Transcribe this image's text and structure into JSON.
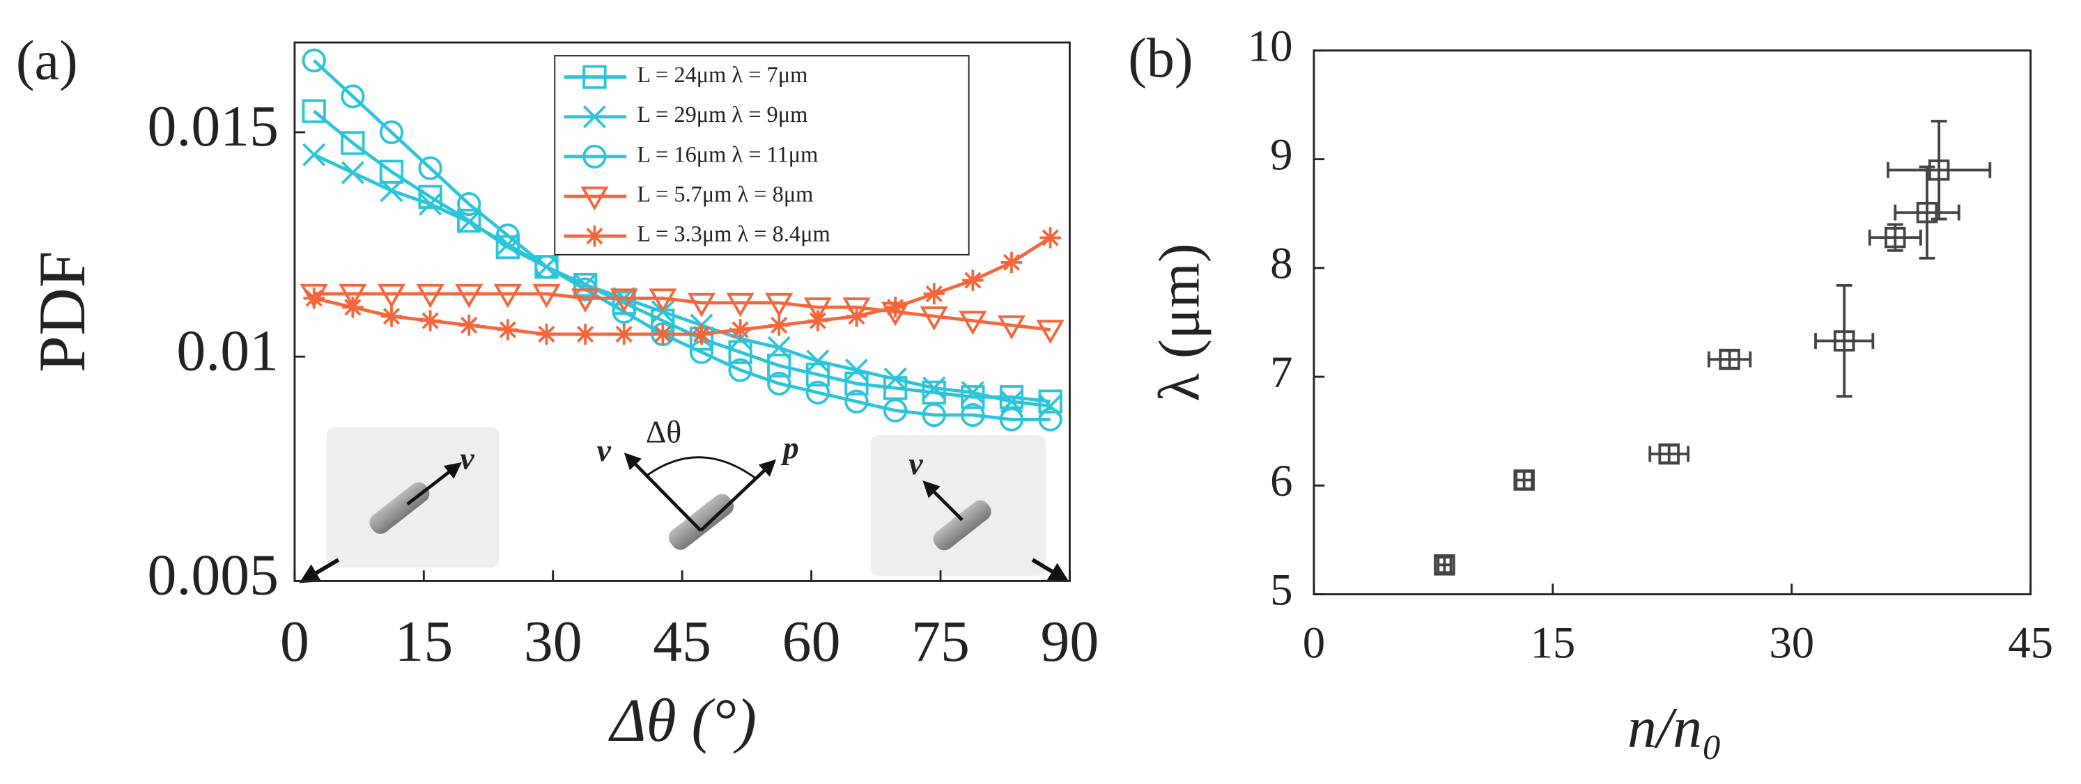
{
  "chart_data": [
    {
      "type": "line",
      "panel": "(a)",
      "ylabel": "PDF",
      "xlabel": "Δθ (°)",
      "xlim": [
        0,
        90
      ],
      "xticks": [
        0,
        15,
        30,
        45,
        60,
        75,
        90
      ],
      "ylim": [
        0.005,
        0.017
      ],
      "yticks": [
        0.005,
        0.01,
        0.015
      ],
      "x": [
        2.25,
        6.75,
        11.25,
        15.75,
        20.25,
        24.75,
        29.25,
        33.75,
        38.25,
        42.75,
        47.25,
        51.75,
        56.25,
        60.75,
        65.25,
        69.75,
        74.25,
        78.75,
        83.25,
        87.75
      ],
      "annotations": [
        "v",
        "Δθ",
        "v",
        "p",
        "v"
      ],
      "series": [
        {
          "name": "L = 24μm   λ = 7μm",
          "color": "#2bc4d9",
          "marker": "square",
          "values": [
            0.01547,
            0.01476,
            0.01412,
            0.01356,
            0.01303,
            0.01244,
            0.012,
            0.0116,
            0.0112,
            0.0108,
            0.0104,
            0.0101,
            0.0098,
            0.0096,
            0.0094,
            0.0093,
            0.0092,
            0.0091,
            0.0091,
            0.009
          ]
        },
        {
          "name": "L = 29μm   λ = 9μm",
          "color": "#2bc4d9",
          "marker": "x",
          "values": [
            0.0145,
            0.0141,
            0.0137,
            0.0134,
            0.013,
            0.0125,
            0.012,
            0.0116,
            0.0113,
            0.011,
            0.0107,
            0.0104,
            0.0102,
            0.0099,
            0.0097,
            0.0095,
            0.0093,
            0.0092,
            0.009,
            0.0089
          ]
        },
        {
          "name": "L = 16μm   λ = 11μm",
          "color": "#2bc4d9",
          "marker": "circle",
          "values": [
            0.0166,
            0.0158,
            0.015,
            0.0142,
            0.0134,
            0.0127,
            0.012,
            0.0115,
            0.011,
            0.0105,
            0.0101,
            0.0097,
            0.0094,
            0.0092,
            0.009,
            0.0088,
            0.0087,
            0.0087,
            0.0086,
            0.0086
          ]
        },
        {
          "name": "L = 5.7μm   λ = 8μm",
          "color": "#f4663b",
          "marker": "triangle-down",
          "values": [
            0.0114,
            0.0114,
            0.0114,
            0.0114,
            0.0114,
            0.0114,
            0.0114,
            0.0113,
            0.0113,
            0.0113,
            0.0112,
            0.0112,
            0.0112,
            0.0111,
            0.0111,
            0.011,
            0.0109,
            0.0108,
            0.0107,
            0.0106
          ]
        },
        {
          "name": "L = 3.3μm   λ = 8.4μm",
          "color": "#f4663b",
          "marker": "star",
          "values": [
            0.0113,
            0.0111,
            0.0109,
            0.0108,
            0.0107,
            0.0106,
            0.0105,
            0.0105,
            0.0105,
            0.0105,
            0.0105,
            0.0106,
            0.0107,
            0.0108,
            0.0109,
            0.0111,
            0.0114,
            0.0117,
            0.0121,
            0.01265
          ]
        }
      ]
    },
    {
      "type": "scatter",
      "panel": "(b)",
      "ylabel": "λ (μm)",
      "xlabel": "n/n₀",
      "xlim": [
        0,
        45
      ],
      "xticks": [
        0,
        15,
        30,
        45
      ],
      "ylim": [
        5,
        10
      ],
      "yticks": [
        5,
        6,
        7,
        8,
        9,
        10
      ],
      "color": "#444444",
      "x": [
        8.2,
        13.2,
        22.3,
        26.1,
        33.3,
        36.5,
        38.5,
        39.25
      ],
      "xerr": [
        0.4,
        0.5,
        1.2,
        1.3,
        1.8,
        1.6,
        2.0,
        3.2
      ],
      "values": [
        5.27,
        6.05,
        6.29,
        7.16,
        7.33,
        8.28,
        8.51,
        8.9
      ],
      "yerr": [
        0.07,
        0.08,
        0.08,
        0.08,
        0.51,
        0.12,
        0.42,
        0.45
      ]
    }
  ]
}
